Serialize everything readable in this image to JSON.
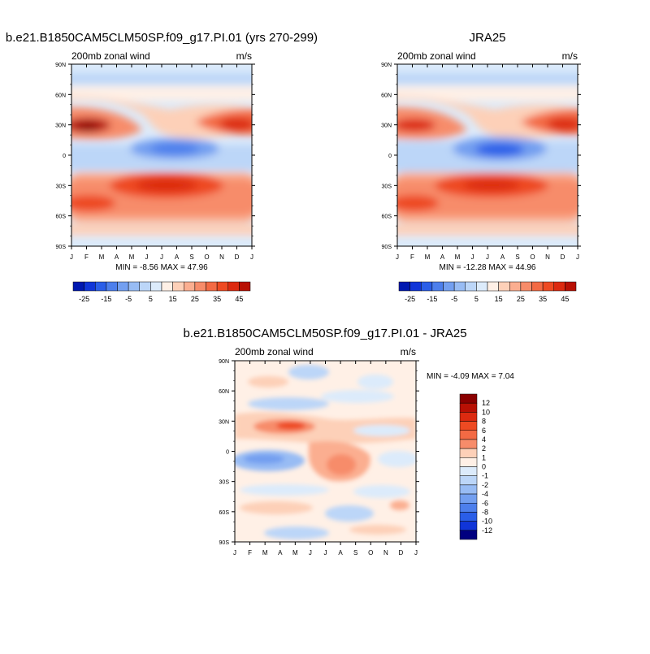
{
  "colors": {
    "pos": [
      "#fff0e6",
      "#fdd0b8",
      "#fbae90",
      "#f78c6a",
      "#f36a44",
      "#ee4a22",
      "#dc2a10",
      "#b81004",
      "#8a0000"
    ],
    "neg": [
      "#dcebfb",
      "#bcd6f8",
      "#98bcf4",
      "#739ff0",
      "#4d7fec",
      "#2a5ee8",
      "#1035d8",
      "#0018b0",
      "#000080"
    ]
  },
  "charts": [
    {
      "title": "b.e21.B1850CAM5CLM50SP.f09_g17.PI.01 (yrs 270-299)",
      "left_label": "200mb zonal wind",
      "right_label": "m/s",
      "stats": "MIN =  -8.56 MAX =  47.96",
      "colorbar_labels": [
        "-25",
        "-15",
        "-5",
        "5",
        "15",
        "25",
        "35",
        "45"
      ]
    },
    {
      "title": "JRA25",
      "left_label": "200mb zonal wind",
      "right_label": "m/s",
      "stats": "MIN = -12.28 MAX =  44.96",
      "colorbar_labels": [
        "-25",
        "-15",
        "-5",
        "5",
        "15",
        "25",
        "35",
        "45"
      ]
    },
    {
      "title": "b.e21.B1850CAM5CLM50SP.f09_g17.PI.01 - JRA25",
      "left_label": "200mb zonal wind",
      "right_label": "m/s",
      "stats": "MIN =  -4.09 MAX =   7.04",
      "colorbar_labels": [
        "12",
        "10",
        "8",
        "6",
        "4",
        "2",
        "1",
        "0",
        "-1",
        "-2",
        "-4",
        "-6",
        "-8",
        "-10",
        "-12"
      ]
    }
  ],
  "chart_data": [
    {
      "type": "heatmap",
      "title": "b.e21.B1850CAM5CLM50SP.f09_g17.PI.01 (yrs 270-299)",
      "xlabel": "",
      "ylabel": "",
      "x_ticks": [
        "J",
        "F",
        "M",
        "A",
        "M",
        "J",
        "J",
        "A",
        "S",
        "O",
        "N",
        "D",
        "J"
      ],
      "y_ticks": [
        "90N",
        "60N",
        "30N",
        "0",
        "30S",
        "60S",
        "90S"
      ],
      "units": "m/s",
      "levels": [
        -25,
        -20,
        -15,
        -10,
        -5,
        0,
        5,
        10,
        15,
        20,
        25,
        30,
        35,
        40,
        45
      ],
      "min": -8.56,
      "max": 47.96,
      "features": [
        {
          "lat": 28,
          "month": "Feb",
          "value": 47
        },
        {
          "lat": 32,
          "month": "Dec",
          "value": 40
        },
        {
          "lat": 5,
          "month": "Jul",
          "value": -5
        },
        {
          "lat": -30,
          "month": "Jul",
          "value": 45
        },
        {
          "lat": -45,
          "month": "Jan",
          "value": 35
        }
      ]
    },
    {
      "type": "heatmap",
      "title": "JRA25",
      "xlabel": "",
      "ylabel": "",
      "x_ticks": [
        "J",
        "F",
        "M",
        "A",
        "M",
        "J",
        "J",
        "A",
        "S",
        "O",
        "N",
        "D",
        "J"
      ],
      "y_ticks": [
        "90N",
        "60N",
        "30N",
        "0",
        "30S",
        "60S",
        "90S"
      ],
      "units": "m/s",
      "levels": [
        -25,
        -20,
        -15,
        -10,
        -5,
        0,
        5,
        10,
        15,
        20,
        25,
        30,
        35,
        40,
        45
      ],
      "min": -12.28,
      "max": 44.96,
      "features": [
        {
          "lat": 28,
          "month": "Feb",
          "value": 40
        },
        {
          "lat": 30,
          "month": "Dec",
          "value": 40
        },
        {
          "lat": 5,
          "month": "Jul",
          "value": -10
        },
        {
          "lat": -30,
          "month": "Jul",
          "value": 40
        },
        {
          "lat": -45,
          "month": "Jan",
          "value": 35
        }
      ]
    },
    {
      "type": "heatmap",
      "title": "b.e21.B1850CAM5CLM50SP.f09_g17.PI.01 - JRA25",
      "xlabel": "",
      "ylabel": "",
      "x_ticks": [
        "J",
        "F",
        "M",
        "A",
        "M",
        "J",
        "J",
        "A",
        "S",
        "O",
        "N",
        "D",
        "J"
      ],
      "y_ticks": [
        "90N",
        "60N",
        "30N",
        "0",
        "30S",
        "60S",
        "90S"
      ],
      "units": "m/s",
      "levels": [
        -12,
        -10,
        -8,
        -6,
        -4,
        -2,
        -1,
        0,
        1,
        2,
        4,
        6,
        8,
        10,
        12
      ],
      "min": -4.09,
      "max": 7.04,
      "features": [
        {
          "lat": 22,
          "month": "Apr",
          "value": 6
        },
        {
          "lat": -5,
          "month": "Mar",
          "value": -3
        },
        {
          "lat": -15,
          "month": "Aug",
          "value": 5
        },
        {
          "lat": 45,
          "month": "Apr",
          "value": -2
        }
      ]
    }
  ]
}
